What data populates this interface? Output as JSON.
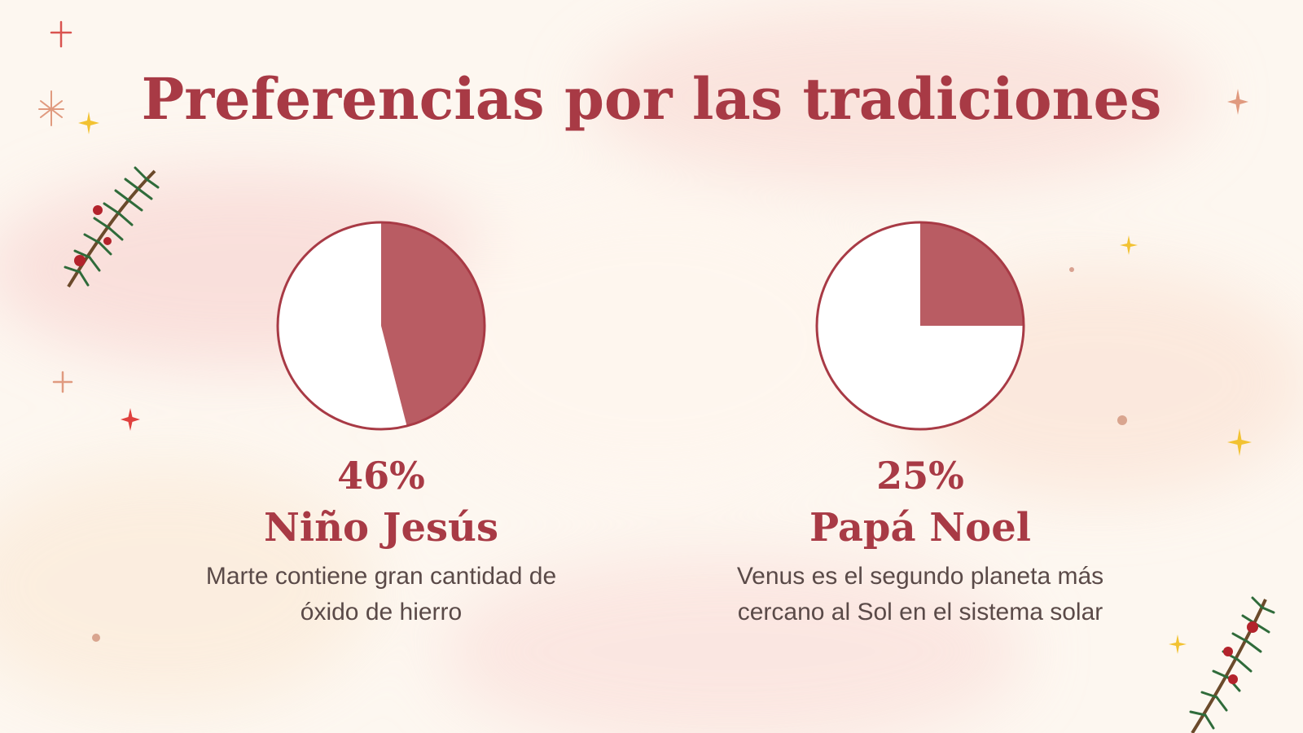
{
  "slide": {
    "title": "Preferencias por las tradiciones"
  },
  "colors": {
    "accent": "#a83a45",
    "slice": "#b95c63",
    "rest": "#ffffff",
    "text": "#5a4a48"
  },
  "chart_data": [
    {
      "type": "pie",
      "values": [
        46,
        54
      ],
      "highlight_value": 46,
      "percent_label": "46%",
      "label": "Niño Jesús",
      "description": [
        "Marte contiene gran cantidad de",
        "óxido de hierro"
      ]
    },
    {
      "type": "pie",
      "values": [
        25,
        75
      ],
      "highlight_value": 25,
      "percent_label": "25%",
      "label": "Papá Noel",
      "description": [
        "Venus es el segundo planeta más",
        "cercano al Sol en el sistema solar"
      ]
    }
  ],
  "decorations": [
    "pine-branch-icon",
    "sparkle-star-icon",
    "plus-star-icon",
    "dot-icon"
  ]
}
